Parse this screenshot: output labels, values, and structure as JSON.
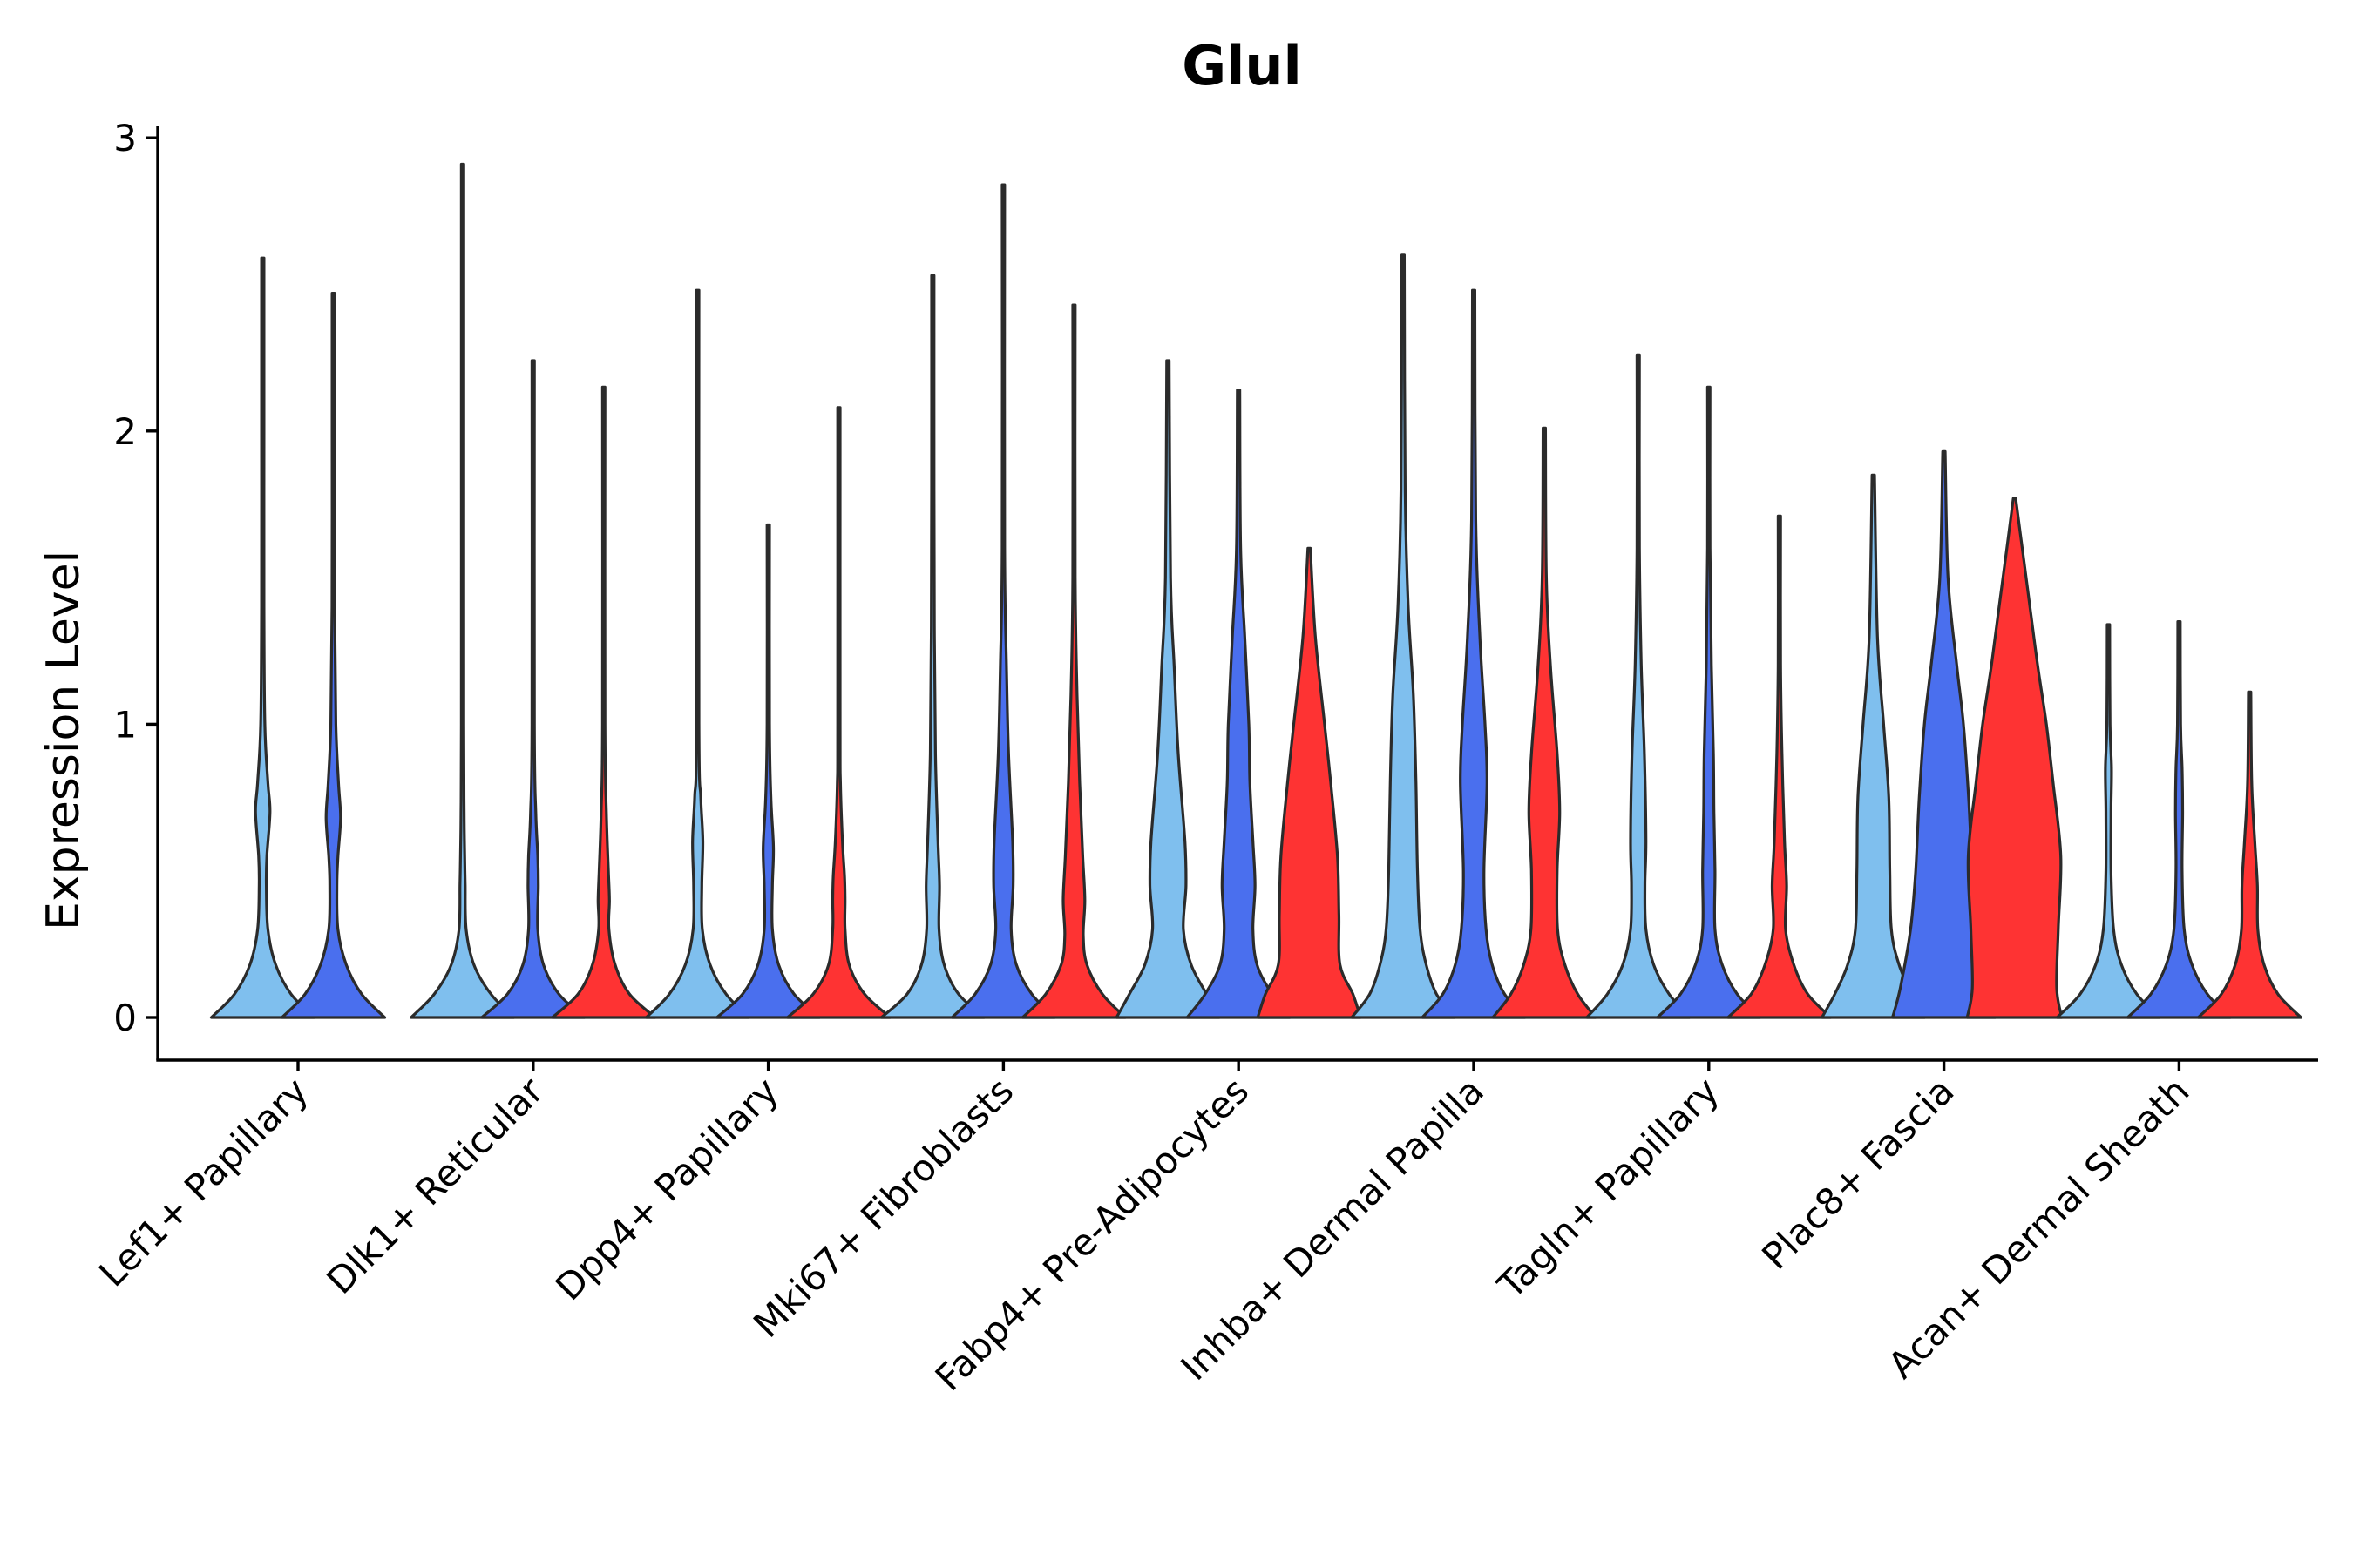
{
  "chart_data": {
    "type": "violin",
    "title": "Glul",
    "ylabel": "Expression Level",
    "xlabel": "",
    "ylim": [
      -0.15,
      3.05
    ],
    "yticks": [
      0,
      1,
      2,
      3
    ],
    "grid": false,
    "legend": "none",
    "categories": [
      "Lef1+ Papillary",
      "Dlk1+ Reticular",
      "Dpp4+ Papillary",
      "Mki67+ Fibroblasts",
      "Fabp4+ Pre-Adipocytes",
      "Inhba+ Dermal Papilla",
      "Tagln+ Papillary",
      "Plac8+ Fascia",
      "Acan+ Dermal Sheath"
    ],
    "group_colors": [
      "#7fbfee",
      "#4a6fee",
      "#fe3333"
    ],
    "violins": [
      {
        "category": 0,
        "group": 0,
        "max": 2.59,
        "profile": [
          [
            0,
            1.0
          ],
          [
            0.08,
            0.55
          ],
          [
            0.18,
            0.25
          ],
          [
            0.3,
            0.1
          ],
          [
            0.45,
            0.07
          ],
          [
            0.55,
            0.08
          ],
          [
            0.7,
            0.14
          ],
          [
            0.8,
            0.1
          ],
          [
            1.0,
            0.04
          ],
          [
            1.4,
            0.02
          ],
          [
            2.0,
            0.01
          ],
          [
            2.59,
            0.0
          ]
        ]
      },
      {
        "category": 0,
        "group": 1,
        "max": 2.47,
        "profile": [
          [
            0,
            1.0
          ],
          [
            0.08,
            0.55
          ],
          [
            0.18,
            0.25
          ],
          [
            0.3,
            0.09
          ],
          [
            0.45,
            0.07
          ],
          [
            0.55,
            0.09
          ],
          [
            0.68,
            0.14
          ],
          [
            0.8,
            0.1
          ],
          [
            1.0,
            0.05
          ],
          [
            1.4,
            0.025
          ],
          [
            2.0,
            0.01
          ],
          [
            2.47,
            0.0
          ]
        ]
      },
      {
        "category": 1,
        "group": 0,
        "max": 2.91,
        "profile": [
          [
            0,
            1.0
          ],
          [
            0.08,
            0.55
          ],
          [
            0.18,
            0.22
          ],
          [
            0.3,
            0.07
          ],
          [
            0.45,
            0.05
          ],
          [
            0.55,
            0.04
          ],
          [
            0.7,
            0.03
          ],
          [
            1.0,
            0.015
          ],
          [
            2.0,
            0.007
          ],
          [
            2.91,
            0.0
          ]
        ]
      },
      {
        "category": 1,
        "group": 1,
        "max": 2.24,
        "profile": [
          [
            0,
            1.0
          ],
          [
            0.08,
            0.5
          ],
          [
            0.18,
            0.2
          ],
          [
            0.3,
            0.09
          ],
          [
            0.45,
            0.1
          ],
          [
            0.55,
            0.09
          ],
          [
            0.7,
            0.05
          ],
          [
            1.0,
            0.02
          ],
          [
            2.24,
            0.0
          ]
        ]
      },
      {
        "category": 1,
        "group": 2,
        "max": 2.15,
        "profile": [
          [
            0,
            1.0
          ],
          [
            0.08,
            0.5
          ],
          [
            0.18,
            0.22
          ],
          [
            0.3,
            0.1
          ],
          [
            0.4,
            0.11
          ],
          [
            0.5,
            0.09
          ],
          [
            0.7,
            0.05
          ],
          [
            1.0,
            0.015
          ],
          [
            2.15,
            0.0
          ]
        ]
      },
      {
        "category": 2,
        "group": 0,
        "max": 2.48,
        "profile": [
          [
            0,
            1.0
          ],
          [
            0.08,
            0.55
          ],
          [
            0.18,
            0.24
          ],
          [
            0.3,
            0.09
          ],
          [
            0.45,
            0.08
          ],
          [
            0.6,
            0.1
          ],
          [
            0.75,
            0.06
          ],
          [
            1.0,
            0.02
          ],
          [
            2.48,
            0.0
          ]
        ]
      },
      {
        "category": 2,
        "group": 1,
        "max": 1.68,
        "profile": [
          [
            0,
            1.0
          ],
          [
            0.08,
            0.5
          ],
          [
            0.18,
            0.2
          ],
          [
            0.3,
            0.08
          ],
          [
            0.45,
            0.08
          ],
          [
            0.58,
            0.1
          ],
          [
            0.75,
            0.05
          ],
          [
            1.0,
            0.015
          ],
          [
            1.68,
            0.0
          ]
        ]
      },
      {
        "category": 2,
        "group": 2,
        "max": 2.08,
        "profile": [
          [
            0,
            1.0
          ],
          [
            0.08,
            0.5
          ],
          [
            0.18,
            0.2
          ],
          [
            0.3,
            0.12
          ],
          [
            0.4,
            0.12
          ],
          [
            0.48,
            0.11
          ],
          [
            0.6,
            0.07
          ],
          [
            0.8,
            0.03
          ],
          [
            1.0,
            0.015
          ],
          [
            2.08,
            0.0
          ]
        ]
      },
      {
        "category": 3,
        "group": 0,
        "max": 2.53,
        "profile": [
          [
            0,
            1.0
          ],
          [
            0.08,
            0.5
          ],
          [
            0.18,
            0.22
          ],
          [
            0.3,
            0.12
          ],
          [
            0.45,
            0.13
          ],
          [
            0.6,
            0.1
          ],
          [
            0.9,
            0.05
          ],
          [
            1.3,
            0.03
          ],
          [
            1.8,
            0.01
          ],
          [
            2.53,
            0.0
          ]
        ]
      },
      {
        "category": 3,
        "group": 1,
        "max": 2.84,
        "profile": [
          [
            0,
            1.0
          ],
          [
            0.08,
            0.55
          ],
          [
            0.18,
            0.25
          ],
          [
            0.3,
            0.15
          ],
          [
            0.45,
            0.19
          ],
          [
            0.6,
            0.18
          ],
          [
            0.9,
            0.1
          ],
          [
            1.2,
            0.06
          ],
          [
            1.6,
            0.02
          ],
          [
            2.84,
            0.0
          ]
        ]
      },
      {
        "category": 3,
        "group": 2,
        "max": 2.43,
        "profile": [
          [
            0,
            1.0
          ],
          [
            0.08,
            0.55
          ],
          [
            0.18,
            0.25
          ],
          [
            0.28,
            0.18
          ],
          [
            0.4,
            0.21
          ],
          [
            0.55,
            0.17
          ],
          [
            0.8,
            0.11
          ],
          [
            1.1,
            0.06
          ],
          [
            1.5,
            0.02
          ],
          [
            2.43,
            0.0
          ]
        ]
      },
      {
        "category": 3,
        "group": 0,
        "max": 0,
        "skip": true,
        "profile": []
      },
      {
        "category": 4,
        "group": 0,
        "max": 2.24,
        "profile": [
          [
            0,
            1.0
          ],
          [
            0.08,
            0.75
          ],
          [
            0.18,
            0.45
          ],
          [
            0.3,
            0.3
          ],
          [
            0.45,
            0.35
          ],
          [
            0.6,
            0.33
          ],
          [
            0.9,
            0.2
          ],
          [
            1.2,
            0.12
          ],
          [
            1.5,
            0.05
          ],
          [
            2.24,
            0.0
          ]
        ]
      },
      {
        "category": 4,
        "group": 1,
        "max": 2.14,
        "profile": [
          [
            0,
            1.0
          ],
          [
            0.08,
            0.65
          ],
          [
            0.18,
            0.36
          ],
          [
            0.3,
            0.28
          ],
          [
            0.45,
            0.32
          ],
          [
            0.6,
            0.28
          ],
          [
            0.8,
            0.22
          ],
          [
            1.0,
            0.2
          ],
          [
            1.3,
            0.12
          ],
          [
            1.6,
            0.04
          ],
          [
            2.14,
            0.0
          ]
        ]
      },
      {
        "category": 4,
        "group": 2,
        "max": 1.6,
        "profile": [
          [
            0,
            1.0
          ],
          [
            0.08,
            0.85
          ],
          [
            0.18,
            0.6
          ],
          [
            0.35,
            0.58
          ],
          [
            0.55,
            0.55
          ],
          [
            0.8,
            0.42
          ],
          [
            1.0,
            0.3
          ],
          [
            1.3,
            0.12
          ],
          [
            1.6,
            0.0
          ]
        ]
      },
      {
        "category": 5,
        "group": 0,
        "max": 2.6,
        "profile": [
          [
            0,
            1.0
          ],
          [
            0.08,
            0.65
          ],
          [
            0.18,
            0.45
          ],
          [
            0.3,
            0.33
          ],
          [
            0.5,
            0.28
          ],
          [
            0.8,
            0.25
          ],
          [
            1.1,
            0.2
          ],
          [
            1.4,
            0.1
          ],
          [
            1.8,
            0.04
          ],
          [
            2.6,
            0.0
          ]
        ]
      },
      {
        "category": 5,
        "group": 1,
        "max": 2.48,
        "profile": [
          [
            0,
            1.0
          ],
          [
            0.08,
            0.6
          ],
          [
            0.18,
            0.36
          ],
          [
            0.3,
            0.24
          ],
          [
            0.5,
            0.2
          ],
          [
            0.8,
            0.26
          ],
          [
            1.0,
            0.22
          ],
          [
            1.3,
            0.12
          ],
          [
            1.7,
            0.04
          ],
          [
            2.48,
            0.0
          ]
        ]
      },
      {
        "category": 5,
        "group": 2,
        "max": 2.01,
        "profile": [
          [
            0,
            1.0
          ],
          [
            0.08,
            0.65
          ],
          [
            0.18,
            0.4
          ],
          [
            0.3,
            0.26
          ],
          [
            0.5,
            0.25
          ],
          [
            0.7,
            0.3
          ],
          [
            0.9,
            0.25
          ],
          [
            1.2,
            0.12
          ],
          [
            1.5,
            0.04
          ],
          [
            2.01,
            0.0
          ]
        ]
      },
      {
        "category": 6,
        "group": 0,
        "max": 2.26,
        "profile": [
          [
            0,
            1.0
          ],
          [
            0.08,
            0.6
          ],
          [
            0.18,
            0.3
          ],
          [
            0.3,
            0.15
          ],
          [
            0.45,
            0.13
          ],
          [
            0.6,
            0.15
          ],
          [
            0.9,
            0.12
          ],
          [
            1.2,
            0.06
          ],
          [
            1.6,
            0.02
          ],
          [
            2.26,
            0.0
          ]
        ]
      },
      {
        "category": 6,
        "group": 1,
        "max": 2.15,
        "profile": [
          [
            0,
            1.0
          ],
          [
            0.08,
            0.55
          ],
          [
            0.18,
            0.26
          ],
          [
            0.3,
            0.12
          ],
          [
            0.5,
            0.12
          ],
          [
            0.7,
            0.1
          ],
          [
            0.9,
            0.09
          ],
          [
            1.2,
            0.05
          ],
          [
            1.6,
            0.015
          ],
          [
            2.15,
            0.0
          ]
        ]
      },
      {
        "category": 6,
        "group": 2,
        "max": 1.71,
        "profile": [
          [
            0,
            1.0
          ],
          [
            0.08,
            0.55
          ],
          [
            0.18,
            0.28
          ],
          [
            0.3,
            0.12
          ],
          [
            0.45,
            0.14
          ],
          [
            0.6,
            0.1
          ],
          [
            0.9,
            0.05
          ],
          [
            1.2,
            0.02
          ],
          [
            1.71,
            0.0
          ]
        ]
      },
      {
        "category": 7,
        "group": 0,
        "max": 1.85,
        "profile": [
          [
            0,
            1.0
          ],
          [
            0.08,
            0.75
          ],
          [
            0.18,
            0.5
          ],
          [
            0.3,
            0.35
          ],
          [
            0.5,
            0.32
          ],
          [
            0.75,
            0.3
          ],
          [
            1.0,
            0.2
          ],
          [
            1.3,
            0.08
          ],
          [
            1.85,
            0.0
          ]
        ]
      },
      {
        "category": 7,
        "group": 1,
        "max": 1.93,
        "profile": [
          [
            0,
            1.0
          ],
          [
            0.1,
            0.85
          ],
          [
            0.3,
            0.65
          ],
          [
            0.5,
            0.55
          ],
          [
            0.75,
            0.48
          ],
          [
            1.0,
            0.38
          ],
          [
            1.2,
            0.25
          ],
          [
            1.5,
            0.08
          ],
          [
            1.93,
            0.0
          ]
        ]
      },
      {
        "category": 7,
        "group": 2,
        "max": 1.77,
        "profile": [
          [
            0,
            0.92
          ],
          [
            0.1,
            0.82
          ],
          [
            0.3,
            0.85
          ],
          [
            0.55,
            0.9
          ],
          [
            0.8,
            0.75
          ],
          [
            1.0,
            0.62
          ],
          [
            1.2,
            0.45
          ],
          [
            1.4,
            0.3
          ],
          [
            1.6,
            0.15
          ],
          [
            1.77,
            0.0
          ]
        ]
      },
      {
        "category": 8,
        "group": 0,
        "max": 1.34,
        "profile": [
          [
            0,
            1.0
          ],
          [
            0.08,
            0.55
          ],
          [
            0.18,
            0.25
          ],
          [
            0.3,
            0.1
          ],
          [
            0.5,
            0.05
          ],
          [
            0.7,
            0.05
          ],
          [
            0.85,
            0.06
          ],
          [
            1.0,
            0.03
          ],
          [
            1.34,
            0.0
          ]
        ]
      },
      {
        "category": 8,
        "group": 1,
        "max": 1.35,
        "profile": [
          [
            0,
            1.0
          ],
          [
            0.08,
            0.55
          ],
          [
            0.18,
            0.25
          ],
          [
            0.3,
            0.1
          ],
          [
            0.5,
            0.06
          ],
          [
            0.7,
            0.07
          ],
          [
            0.85,
            0.06
          ],
          [
            1.0,
            0.03
          ],
          [
            1.35,
            0.0
          ]
        ]
      },
      {
        "category": 8,
        "group": 2,
        "max": 1.11,
        "profile": [
          [
            0,
            1.0
          ],
          [
            0.08,
            0.55
          ],
          [
            0.18,
            0.28
          ],
          [
            0.3,
            0.16
          ],
          [
            0.45,
            0.15
          ],
          [
            0.6,
            0.1
          ],
          [
            0.8,
            0.04
          ],
          [
            1.11,
            0.0
          ]
        ]
      }
    ]
  }
}
